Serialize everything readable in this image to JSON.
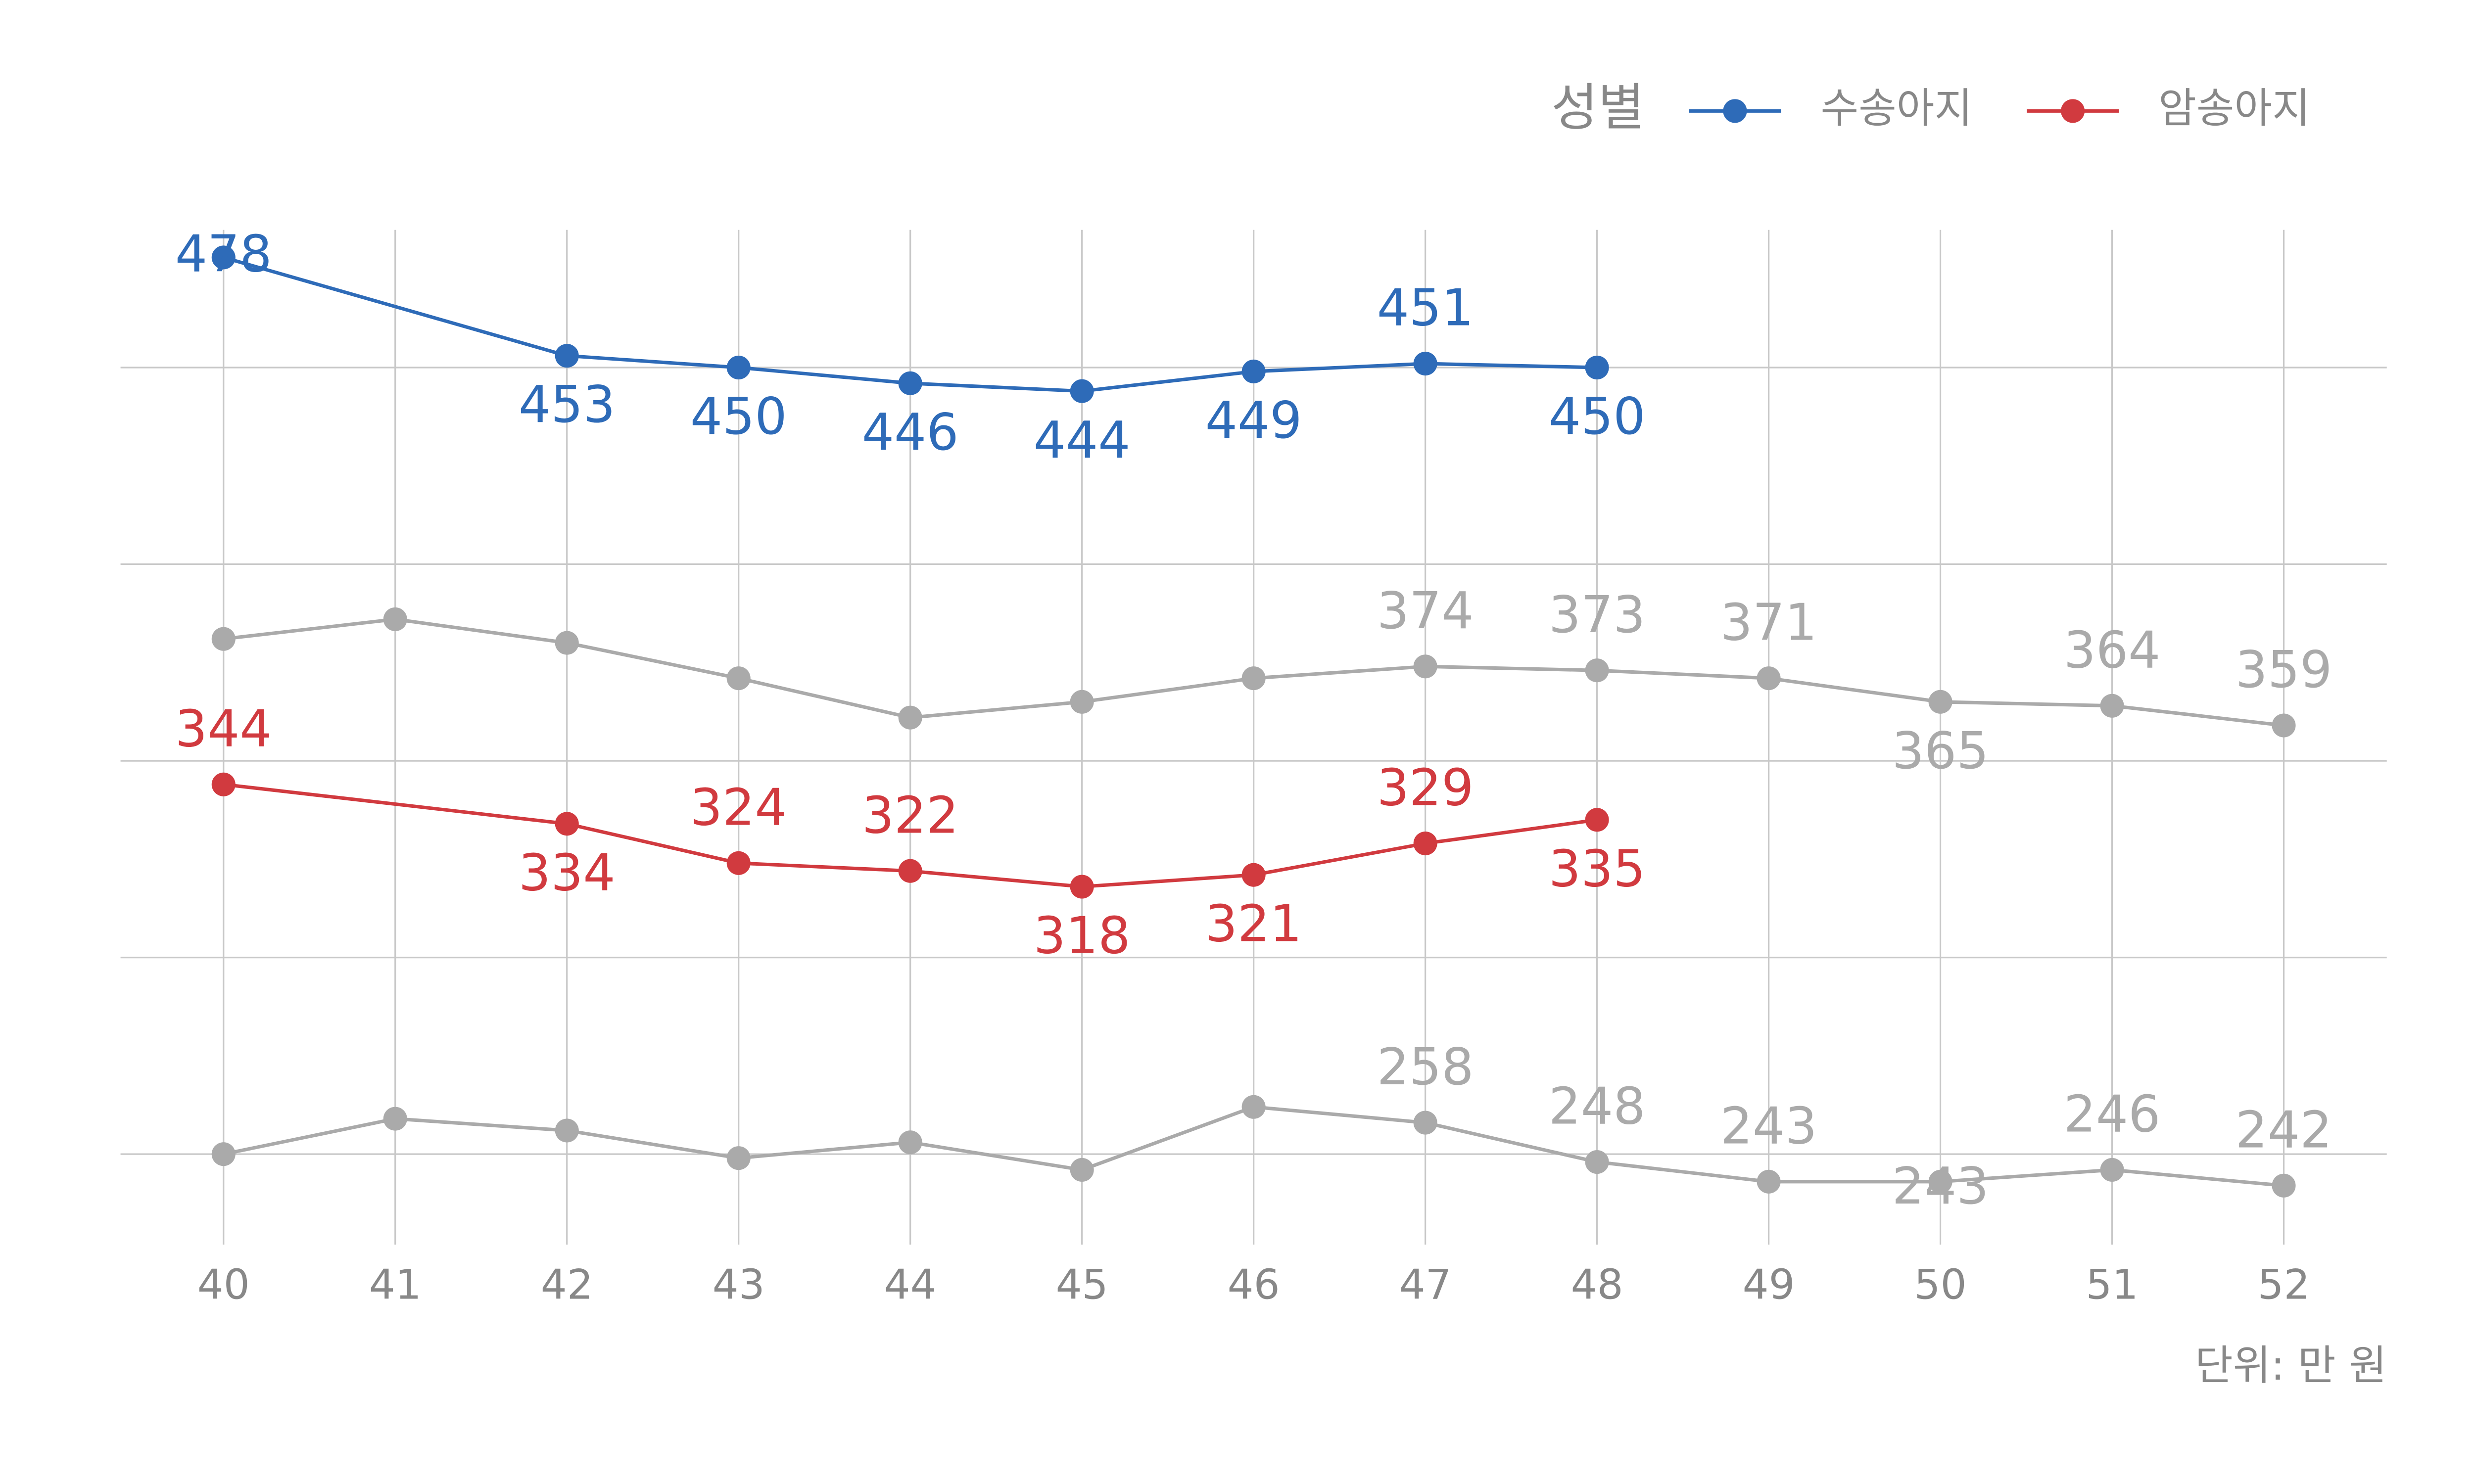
{
  "chart_data": {
    "type": "line",
    "legend_title": "성별",
    "caption": "단위: 만 원",
    "xlim": [
      39.4,
      52.6
    ],
    "xticks": [
      40,
      41,
      42,
      43,
      44,
      45,
      46,
      47,
      48,
      49,
      50,
      51,
      52
    ],
    "ylim": [
      227,
      485
    ],
    "yticks": [
      250,
      300,
      350,
      400,
      450
    ],
    "show_ytick_labels": false,
    "grid": true,
    "legend_position": "top-right",
    "series": [
      {
        "name": "수송아지",
        "color": "#2e6bb8",
        "x": [
          40,
          42,
          43,
          44,
          45,
          46,
          47,
          48
        ],
        "values": [
          478,
          453,
          450,
          446,
          444,
          449,
          451,
          450
        ],
        "value_labels": [
          "478",
          "453",
          "450",
          "446",
          "444",
          "449",
          "451",
          "450"
        ]
      },
      {
        "name": "암송아지",
        "color": "#d13a3f",
        "x": [
          40,
          42,
          43,
          44,
          45,
          46,
          47,
          48
        ],
        "values": [
          344,
          334,
          324,
          322,
          318,
          321,
          329,
          335
        ],
        "value_labels": [
          "344",
          "334",
          "324",
          "322",
          "318",
          "321",
          "329",
          "335"
        ]
      },
      {
        "color": "#aaaaaa",
        "x": [
          40,
          41,
          42,
          43,
          44,
          45,
          46,
          47,
          48,
          49,
          50,
          51,
          52
        ],
        "values": [
          381,
          386,
          380,
          371,
          361,
          365,
          371,
          374,
          373,
          371,
          365,
          364,
          359
        ],
        "value_labels": [
          null,
          null,
          null,
          null,
          null,
          null,
          null,
          "374",
          "373",
          "371",
          "365",
          "364",
          "359"
        ]
      },
      {
        "color": "#aaaaaa",
        "x": [
          40,
          41,
          42,
          43,
          44,
          45,
          46,
          47,
          48,
          49,
          50,
          51,
          52
        ],
        "values": [
          250,
          259,
          256,
          249,
          253,
          246,
          262,
          258,
          248,
          243,
          243,
          246,
          242
        ],
        "value_labels": [
          null,
          null,
          null,
          null,
          null,
          null,
          null,
          "258",
          "248",
          "243",
          "243",
          "246",
          "242"
        ]
      }
    ]
  }
}
